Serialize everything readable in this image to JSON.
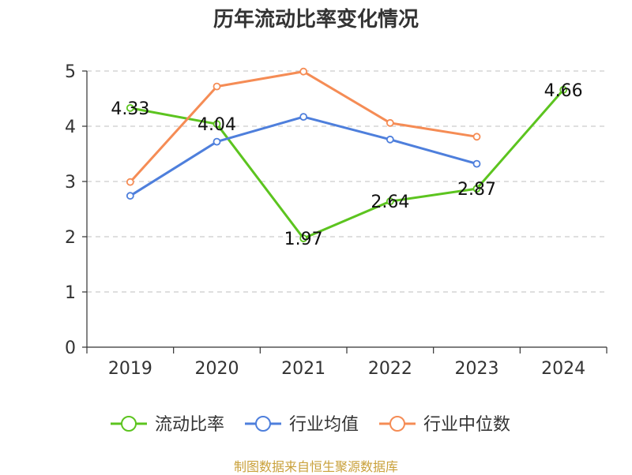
{
  "chart_data": {
    "type": "line",
    "title": "历年流动比率变化情况",
    "categories": [
      "2019",
      "2020",
      "2021",
      "2022",
      "2023",
      "2024"
    ],
    "ylim": [
      0,
      5
    ],
    "yticks": [
      0,
      1,
      2,
      3,
      4,
      5
    ],
    "grid": true,
    "legend_position": "bottom",
    "series": [
      {
        "name": "流动比率",
        "color": "#5cc41f",
        "values": [
          4.33,
          4.04,
          1.97,
          2.64,
          2.87,
          4.66
        ],
        "labels": [
          "4.33",
          "4.04",
          "1.97",
          "2.64",
          "2.87",
          "4.66"
        ]
      },
      {
        "name": "行业均值",
        "color": "#4e7fdc",
        "values": [
          2.74,
          3.72,
          4.17,
          3.76,
          3.32,
          null
        ]
      },
      {
        "name": "行业中位数",
        "color": "#f58c55",
        "values": [
          2.99,
          4.72,
          4.99,
          4.06,
          3.81,
          null
        ]
      }
    ]
  },
  "source": "制图数据来自恒生聚源数据库"
}
